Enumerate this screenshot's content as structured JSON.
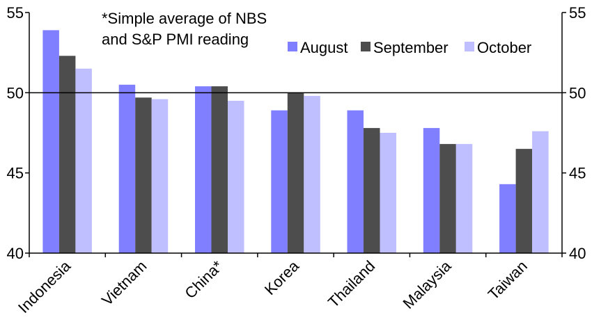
{
  "chart_data": {
    "type": "bar",
    "categories": [
      "Indonesia",
      "Vietnam",
      "China*",
      "Korea",
      "Thailand",
      "Malaysia",
      "Taiwan"
    ],
    "series": [
      {
        "name": "August",
        "color": "#7f7fff",
        "values": [
          53.9,
          50.5,
          50.4,
          48.9,
          48.9,
          47.8,
          44.3
        ]
      },
      {
        "name": "September",
        "color": "#4d4d4d",
        "values": [
          52.3,
          49.7,
          50.4,
          50.0,
          47.8,
          46.8,
          46.5
        ]
      },
      {
        "name": "October",
        "color": "#bfbfff",
        "values": [
          51.5,
          49.6,
          49.5,
          49.8,
          47.5,
          46.8,
          47.6
        ]
      }
    ],
    "y_left": {
      "min": 40,
      "max": 55,
      "ticks": [
        40,
        45,
        50,
        55
      ]
    },
    "y_right": {
      "min": 40,
      "max": 55,
      "ticks": [
        40,
        45,
        50,
        55
      ]
    },
    "reference_line": 50,
    "annotation": [
      "*Simple average of NBS",
      "and S&P PMI reading"
    ],
    "legend_position": "top-right",
    "grid": false
  }
}
